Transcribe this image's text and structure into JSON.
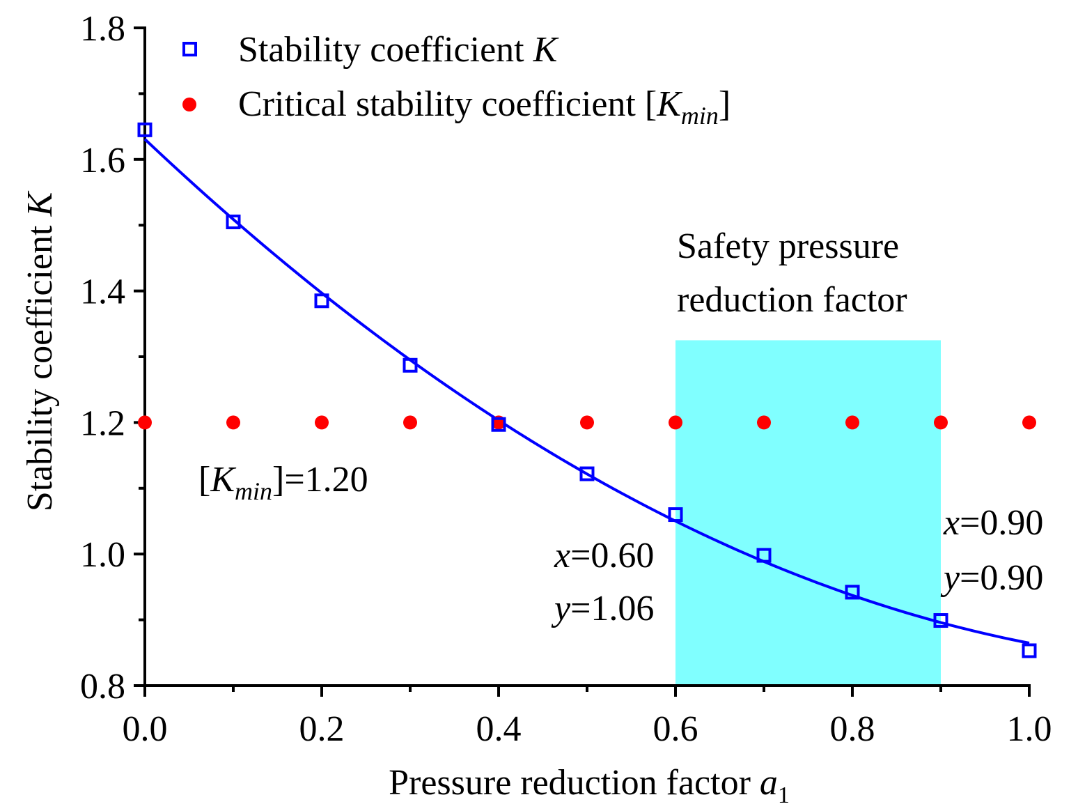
{
  "chart_data": {
    "type": "scatter",
    "title": "",
    "xlabel": "Pressure reduction factor",
    "xlabel_symbol": "a",
    "xlabel_subscript": "1",
    "ylabel": "Stability coefficient",
    "ylabel_symbol": "K",
    "xlim": [
      0.0,
      1.0
    ],
    "ylim": [
      0.8,
      1.8
    ],
    "x_ticks": [
      "0.0",
      "0.2",
      "0.4",
      "0.6",
      "0.8",
      "1.0"
    ],
    "y_ticks": [
      "0.8",
      "1.0",
      "1.2",
      "1.4",
      "1.6",
      "1.8"
    ],
    "grid": false,
    "legend_position": "top-left",
    "series": [
      {
        "name": "Stability coefficient K",
        "legend_text": "Stability coefficient ",
        "legend_symbol": "K",
        "marker": "open-square",
        "color": "#0000FF",
        "fitted_curve": true,
        "x": [
          0.0,
          0.1,
          0.2,
          0.3,
          0.4,
          0.5,
          0.6,
          0.7,
          0.8,
          0.9,
          1.0
        ],
        "y": [
          1.645,
          1.505,
          1.385,
          1.287,
          1.197,
          1.122,
          1.06,
          0.998,
          0.942,
          0.899,
          0.853
        ]
      },
      {
        "name": "Critical stability coefficient [Kmin]",
        "legend_text": "Critical stability coefficient [",
        "legend_symbol": "K",
        "legend_sub": "min",
        "legend_close": "]",
        "marker": "filled-circle",
        "color": "#FF0000",
        "x": [
          0.0,
          0.1,
          0.2,
          0.3,
          0.4,
          0.5,
          0.6,
          0.7,
          0.8,
          0.9,
          1.0
        ],
        "y": [
          1.2,
          1.2,
          1.2,
          1.2,
          1.2,
          1.2,
          1.2,
          1.2,
          1.2,
          1.2,
          1.2
        ]
      }
    ],
    "shaded_region": {
      "label_line1": "Safety pressure",
      "label_line2": "reduction factor",
      "x_range": [
        0.6,
        0.9
      ],
      "y_range": [
        0.8,
        1.325
      ],
      "color": "#80FFFF"
    },
    "annotations": {
      "kmin": {
        "prefix": "[",
        "symbol": "K",
        "sub": "min",
        "suffix": "]=1.20"
      },
      "left_point": {
        "x_var": "x",
        "x_text": "=0.60",
        "y_var": "y",
        "y_text": "=1.06"
      },
      "right_point": {
        "x_var": "x",
        "x_text": "=0.90",
        "y_var": "y",
        "y_text": "=0.90"
      }
    }
  }
}
